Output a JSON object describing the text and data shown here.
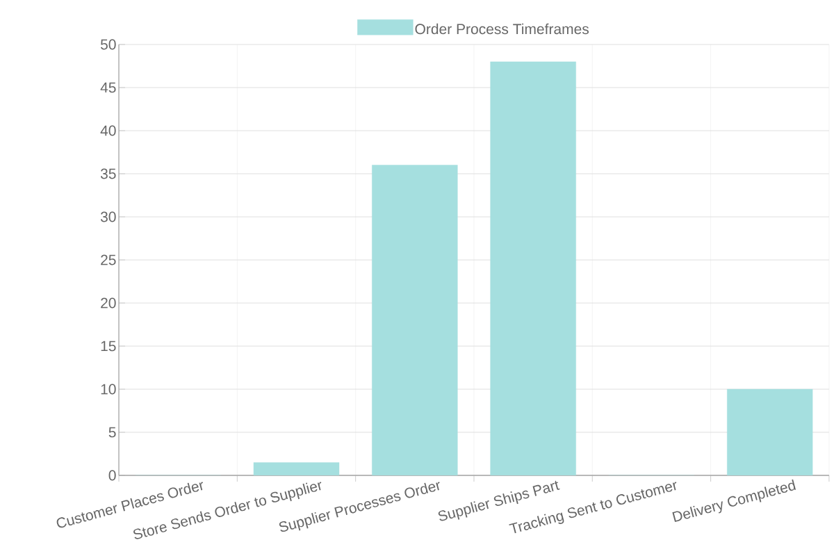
{
  "chart_data": {
    "type": "bar",
    "categories": [
      "Customer Places Order",
      "Store Sends Order to Supplier",
      "Supplier Processes Order",
      "Supplier Ships Part",
      "Tracking Sent to Customer",
      "Delivery Completed"
    ],
    "series": [
      {
        "name": "Order Process Timeframes",
        "color": "#a5dfdf",
        "values": [
          0,
          1.5,
          36,
          48,
          0,
          10
        ]
      }
    ],
    "ylim": [
      0,
      50
    ],
    "yticks": [
      0,
      5,
      10,
      15,
      20,
      25,
      30,
      35,
      40,
      45,
      50
    ],
    "grid": true,
    "legend": "top"
  }
}
